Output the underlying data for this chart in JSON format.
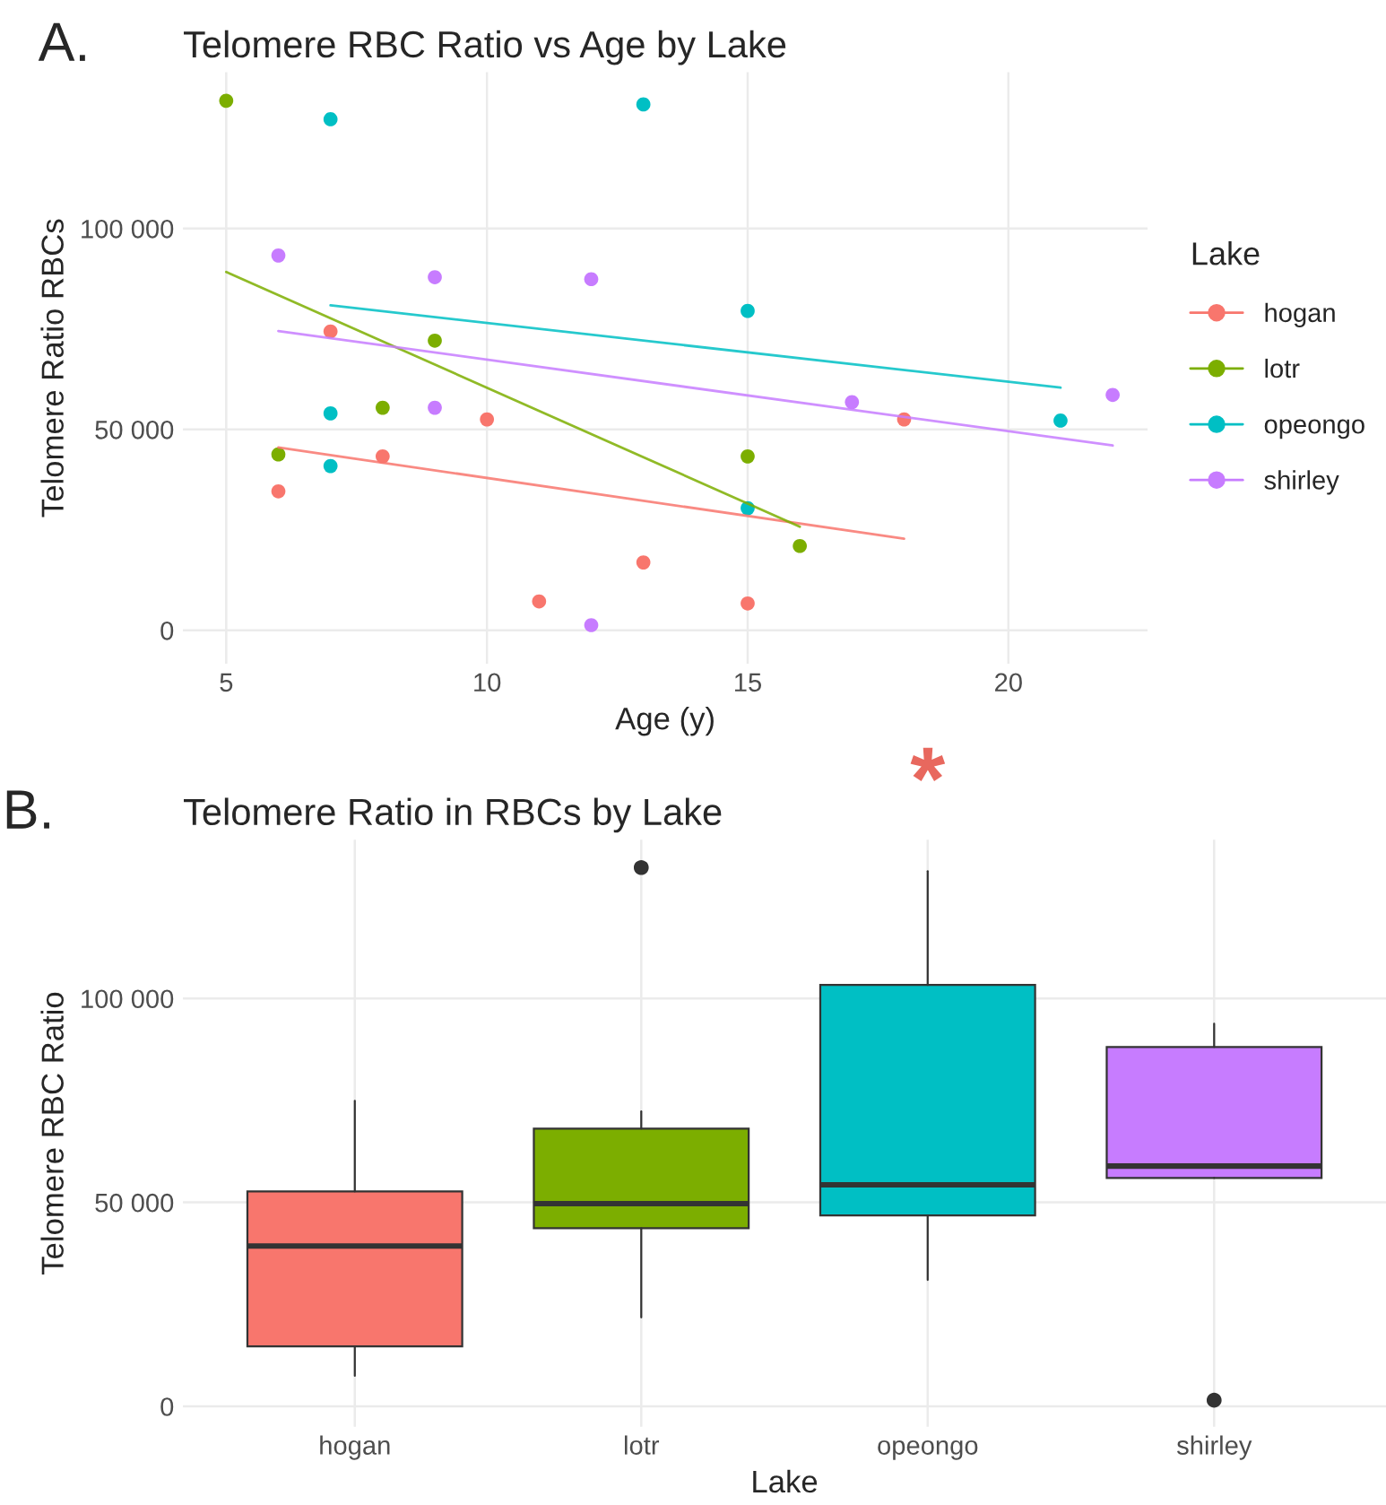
{
  "chart_data": [
    {
      "type": "scatter",
      "title": "Telomere RBC Ratio vs Age by Lake",
      "xlabel": "Age (y)",
      "ylabel": "Telomere Ratio RBCs",
      "legend_title": "Lake",
      "legend": "right",
      "grid": true,
      "marker": "circle",
      "annotations": [
        "A."
      ],
      "xlim": [
        4.17,
        22.67
      ],
      "xticks": [
        5,
        10,
        15,
        20
      ],
      "ylim": [
        -8300,
        138900
      ],
      "yticks": [
        {
          "value": 0,
          "label": "0"
        },
        {
          "value": 50000,
          "label": "50 000"
        },
        {
          "value": 100000,
          "label": "100 000"
        }
      ],
      "series": [
        {
          "name": "hogan",
          "color": "#f8766d",
          "x": [
            6,
            7,
            8,
            10,
            11,
            13,
            15,
            18
          ],
          "values": [
            34600,
            74400,
            43300,
            52500,
            7200,
            16900,
            6700,
            52500
          ]
        },
        {
          "name": "lotr",
          "color": "#7cae00",
          "x": [
            5,
            6,
            8,
            9,
            15,
            16
          ],
          "values": [
            131800,
            43800,
            55400,
            72100,
            43300,
            21000
          ]
        },
        {
          "name": "opeongo",
          "color": "#00bfc4",
          "x": [
            7,
            7,
            7,
            13,
            15,
            15,
            21
          ],
          "values": [
            127200,
            54000,
            40900,
            130900,
            79500,
            30400,
            52200
          ]
        },
        {
          "name": "shirley",
          "color": "#c77cff",
          "x": [
            6,
            9,
            9,
            12,
            12,
            17,
            22
          ],
          "values": [
            93300,
            55400,
            87900,
            87400,
            1300,
            56800,
            58600
          ]
        },
        {
          "type": "line",
          "marker": "none",
          "color": "#f8766d",
          "x": [
            6,
            18
          ],
          "values": [
            45500,
            22800
          ]
        },
        {
          "type": "line",
          "marker": "none",
          "color": "#7cae00",
          "x": [
            5,
            16
          ],
          "values": [
            89200,
            25800
          ]
        },
        {
          "type": "line",
          "marker": "none",
          "color": "#00bfc4",
          "x": [
            7,
            21
          ],
          "values": [
            80900,
            60400
          ]
        },
        {
          "type": "line",
          "marker": "none",
          "color": "#c77cff",
          "x": [
            6,
            22
          ],
          "values": [
            74500,
            46000
          ]
        }
      ]
    },
    {
      "type": "box",
      "title": "Telomere Ratio in RBCs by Lake",
      "xlabel": "Lake",
      "ylabel": "Telomere RBC Ratio",
      "grid": true,
      "annotations": [
        "B.",
        "*"
      ],
      "categories": [
        "hogan",
        "lotr",
        "opeongo",
        "shirley"
      ],
      "colors": [
        "#f8766d",
        "#7cae00",
        "#00bfc4",
        "#c77cff"
      ],
      "ylim": [
        -5000,
        138900
      ],
      "yticks": [
        {
          "value": 0,
          "label": "0"
        },
        {
          "value": 50000,
          "label": "50 000"
        },
        {
          "value": 100000,
          "label": "100 000"
        }
      ],
      "boxes": [
        {
          "low": 7500,
          "q1": 14700,
          "median": 39300,
          "q3": 52700,
          "high": 74900
        },
        {
          "low": 21800,
          "q1": 43700,
          "median": 49700,
          "q3": 68100,
          "high": 72300,
          "outliers": [
            132100
          ]
        },
        {
          "low": 31000,
          "q1": 46800,
          "median": 54300,
          "q3": 103300,
          "high": 131200
        },
        {
          "low": 56000,
          "q1": 56000,
          "median": 58900,
          "q3": 88100,
          "high": 93800,
          "outliers": [
            1500
          ]
        }
      ]
    }
  ]
}
